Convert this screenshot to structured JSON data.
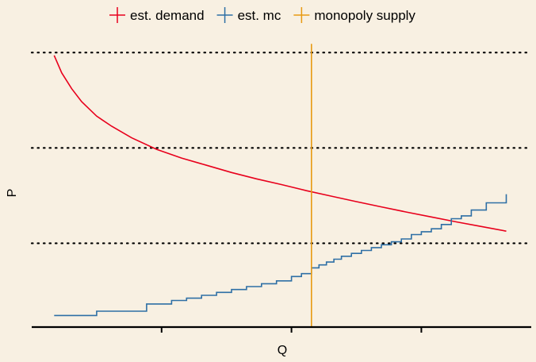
{
  "chart_data": {
    "type": "line",
    "xlabel": "Q",
    "ylabel": "P",
    "xlim": [
      0,
      100
    ],
    "ylim": [
      0,
      100
    ],
    "x_tick_labels": [
      "",
      "",
      ""
    ],
    "x_ticks": [
      26,
      52,
      78
    ],
    "y_gridlines_dotted": [
      29,
      62,
      95
    ],
    "legend": "top-center",
    "legend_entries": [
      "est. demand",
      "est. mc",
      "monopoly supply"
    ],
    "series": [
      {
        "name": "est. demand",
        "color": "#E8001C",
        "style": "line",
        "points": [
          [
            4.5,
            94
          ],
          [
            6,
            88
          ],
          [
            8,
            82.5
          ],
          [
            10,
            78
          ],
          [
            13,
            73
          ],
          [
            16,
            69.5
          ],
          [
            20,
            65.5
          ],
          [
            25,
            61.5
          ],
          [
            30,
            58.5
          ],
          [
            35,
            56
          ],
          [
            40,
            53.5
          ],
          [
            45,
            51.3
          ],
          [
            50,
            49.3
          ],
          [
            55,
            47.2
          ],
          [
            60,
            45.3
          ],
          [
            65,
            43.4
          ],
          [
            70,
            41.6
          ],
          [
            75,
            39.8
          ],
          [
            80,
            38.1
          ],
          [
            85,
            36.4
          ],
          [
            90,
            34.8
          ],
          [
            95,
            33.2
          ]
        ]
      },
      {
        "name": "est. mc",
        "color": "#2E6FA5",
        "style": "step",
        "points": [
          [
            4.5,
            4
          ],
          [
            13,
            4
          ],
          [
            13,
            5.5
          ],
          [
            23,
            5.5
          ],
          [
            23,
            8
          ],
          [
            28,
            8
          ],
          [
            28,
            9.2
          ],
          [
            31,
            9.2
          ],
          [
            31,
            10
          ],
          [
            34,
            10
          ],
          [
            34,
            11
          ],
          [
            37,
            11
          ],
          [
            37,
            12
          ],
          [
            40,
            12
          ],
          [
            40,
            13
          ],
          [
            43,
            13
          ],
          [
            43,
            14
          ],
          [
            46,
            14
          ],
          [
            46,
            15
          ],
          [
            49,
            15
          ],
          [
            49,
            16
          ],
          [
            52,
            16
          ],
          [
            52,
            17.5
          ],
          [
            54,
            17.5
          ],
          [
            54,
            18.5
          ],
          [
            56,
            18.5
          ],
          [
            56,
            20.5
          ],
          [
            57.5,
            20.5
          ],
          [
            57.5,
            21.5
          ],
          [
            59,
            21.5
          ],
          [
            59,
            22.5
          ],
          [
            60.5,
            22.5
          ],
          [
            60.5,
            23.5
          ],
          [
            62,
            23.5
          ],
          [
            62,
            24.5
          ],
          [
            64,
            24.5
          ],
          [
            64,
            25.5
          ],
          [
            66,
            25.5
          ],
          [
            66,
            26.5
          ],
          [
            68,
            26.5
          ],
          [
            68,
            27.5
          ],
          [
            70,
            27.5
          ],
          [
            70,
            28.5
          ],
          [
            72,
            28.5
          ],
          [
            72,
            29.5
          ],
          [
            74,
            29.5
          ],
          [
            74,
            30.5
          ],
          [
            76,
            30.5
          ],
          [
            76,
            32
          ],
          [
            78,
            32
          ],
          [
            78,
            33
          ],
          [
            80,
            33
          ],
          [
            80,
            34
          ],
          [
            82,
            34
          ],
          [
            82,
            35.5
          ],
          [
            84,
            35.5
          ],
          [
            84,
            37.5
          ],
          [
            86,
            37.5
          ],
          [
            86,
            38.5
          ],
          [
            88,
            38.5
          ],
          [
            88,
            40.5
          ],
          [
            91,
            40.5
          ],
          [
            91,
            43
          ],
          [
            95,
            43
          ],
          [
            95,
            46
          ]
        ]
      },
      {
        "name": "monopoly supply",
        "color": "#E89A12",
        "style": "vline",
        "x": 56,
        "y_range": [
          0,
          98
        ]
      }
    ]
  }
}
